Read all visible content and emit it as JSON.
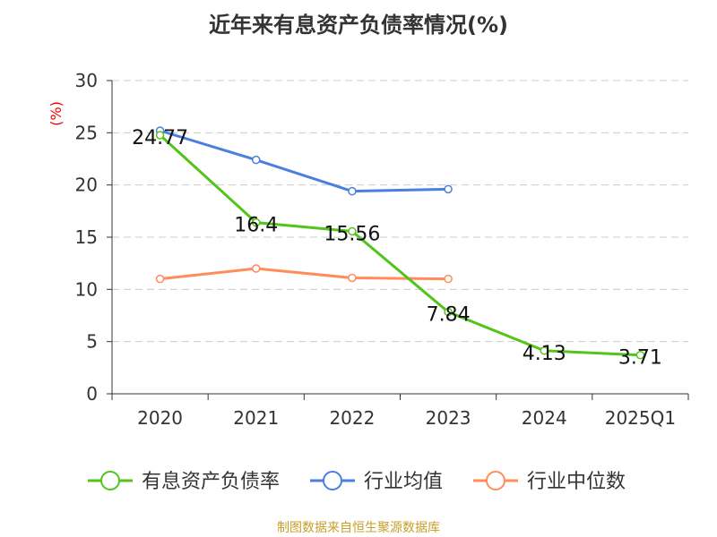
{
  "chart_data": {
    "type": "line",
    "title": "近年来有息资产负债率情况(%)",
    "ylabel": "(%)",
    "xlabel": "",
    "ylim": [
      0,
      30
    ],
    "yticks": [
      0,
      5,
      10,
      15,
      20,
      25,
      30
    ],
    "grid": true,
    "legend_position": "bottom",
    "categories": [
      "2020",
      "2021",
      "2022",
      "2023",
      "2024",
      "2025Q1"
    ],
    "series": [
      {
        "name": "有息资产负债率",
        "color": "#52c41a",
        "values": [
          24.77,
          16.4,
          15.56,
          7.84,
          4.13,
          3.71
        ],
        "labels": true
      },
      {
        "name": "行业均值",
        "color": "#4a7ee0",
        "values": [
          25.2,
          22.4,
          19.4,
          19.6,
          null,
          null
        ],
        "labels": false
      },
      {
        "name": "行业中位数",
        "color": "#ff8c5a",
        "values": [
          11.0,
          12.0,
          11.1,
          11.0,
          null,
          null
        ],
        "labels": false
      }
    ]
  },
  "source": "制图数据来自恒生聚源数据库"
}
